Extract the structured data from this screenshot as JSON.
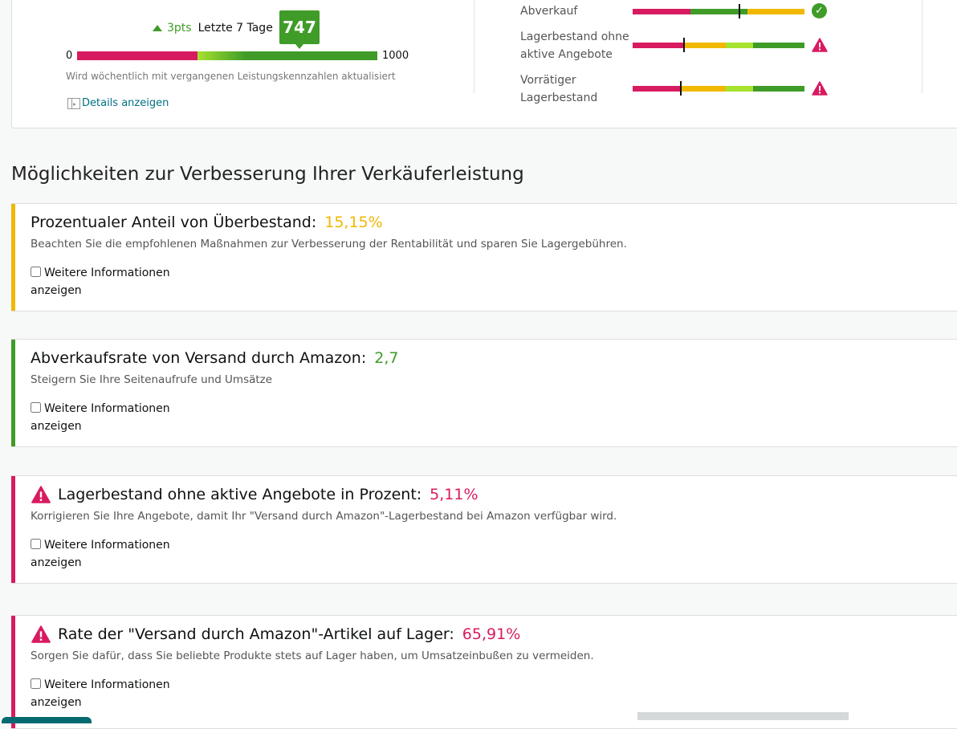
{
  "score": {
    "change": "3pts",
    "period": "Letzte 7 Tage",
    "value": "747",
    "min": "0",
    "max": "1000",
    "note": "Wird wöchentlich mit vergangenen Leistungskennzahlen aktualisiert",
    "details_link": "Details anzeigen",
    "level": 0.747
  },
  "metrics": [
    {
      "label": "Abverkauf",
      "status": "ok",
      "status_icon": "check-circle-icon"
    },
    {
      "label_line1": "Lagerbestand ohne",
      "label_line2": "aktive Angebote",
      "status": "warning",
      "status_icon": "warning-triangle-icon"
    },
    {
      "label_line1": "Vorrätiger",
      "label_line2": "Lagerbestand",
      "status": "warning",
      "status_icon": "warning-triangle-icon"
    }
  ],
  "section_title": "Möglichkeiten zur Verbesserung Ihrer Verkäuferleistung",
  "cards": [
    {
      "title": "Prozentualer Anteil von Überbestand:",
      "value": "15,15%",
      "color": "#f0b800",
      "desc": "Beachten Sie die empfohlenen Maßnahmen zur Verbesserung der Rentabilität und sparen Sie Lagergebühren.",
      "more_line1": "Weitere Informationen",
      "more_line2": "anzeigen"
    },
    {
      "title": "Abverkaufsrate von Versand durch Amazon:",
      "value": "2,7",
      "color": "#3f9c28",
      "desc": "Steigern Sie Ihre Seitenaufrufe und Umsätze",
      "more_line1": "Weitere Informationen",
      "more_line2": "anzeigen"
    },
    {
      "title": "Lagerbestand ohne aktive Angebote in Prozent:",
      "value": "5,11%",
      "color": "#d81b60",
      "desc": "Korrigieren Sie Ihre Angebote, damit Ihr \"Versand durch Amazon\"-Lagerbestand bei Amazon verfügbar wird.",
      "more_line1": "Weitere Informationen",
      "more_line2": "anzeigen"
    },
    {
      "title": "Rate der \"Versand durch Amazon\"-Artikel auf Lager:",
      "value": "65,91%",
      "color": "#d81b60",
      "desc": "Sorgen Sie dafür, dass Sie beliebte Produkte stets auf Lager haben, um Umsatzeinbußen zu vermeiden.",
      "more_line1": "Weitere Informationen",
      "more_line2": "anzeigen"
    }
  ],
  "colors": {
    "red": "#d81b60",
    "yellow": "#f0b800",
    "green": "#3f9c28",
    "lime": "#a6e22e",
    "link": "#007185"
  }
}
